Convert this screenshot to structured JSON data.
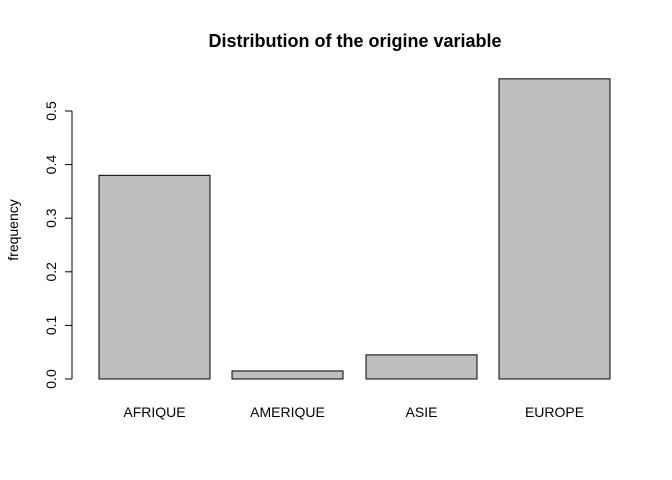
{
  "chart_data": {
    "type": "bar",
    "title": "Distribution of the origine variable",
    "xlabel": "",
    "ylabel": "frequency",
    "categories": [
      "AFRIQUE",
      "AMERIQUE",
      "ASIE",
      "EUROPE"
    ],
    "values": [
      0.38,
      0.015,
      0.045,
      0.56
    ],
    "yticks": [
      0.0,
      0.1,
      0.2,
      0.3,
      0.4,
      0.5
    ],
    "ytick_labels": [
      "0.0",
      "0.1",
      "0.2",
      "0.3",
      "0.4",
      "0.5"
    ],
    "ylim": [
      0,
      0.56
    ],
    "grid": false,
    "colors": {
      "bar_fill": "#bebebe",
      "bar_stroke": "#000000"
    }
  }
}
